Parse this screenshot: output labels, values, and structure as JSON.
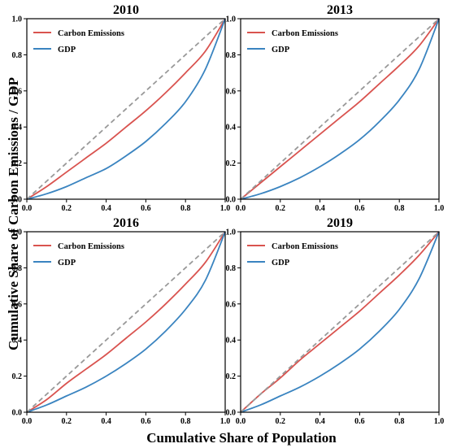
{
  "figure": {
    "xlabel": "Cumulative Share of Population",
    "ylabel": "Cumulative Share of Carbon Emissions / GDP",
    "colors": {
      "emissions": "#d9534f",
      "gdp": "#3a84c0",
      "equality": "#999999"
    }
  },
  "chart_data": [
    {
      "type": "line",
      "title": "2010",
      "xlim": [
        0,
        1
      ],
      "ylim": [
        0,
        1
      ],
      "xticks": [
        "0.0",
        "0.2",
        "0.4",
        "0.6",
        "0.8",
        "1.0"
      ],
      "yticks": [
        "0.0",
        "0.2",
        "0.4",
        "0.6",
        "0.8",
        "1.0"
      ],
      "legend_position": "top-left",
      "series": [
        {
          "name": "Carbon Emissions",
          "x": [
            0,
            0.1,
            0.2,
            0.3,
            0.4,
            0.5,
            0.6,
            0.7,
            0.8,
            0.9,
            1.0
          ],
          "values": [
            0,
            0.07,
            0.15,
            0.23,
            0.31,
            0.4,
            0.49,
            0.59,
            0.7,
            0.82,
            1.0
          ]
        },
        {
          "name": "GDP",
          "x": [
            0,
            0.1,
            0.2,
            0.3,
            0.4,
            0.5,
            0.6,
            0.7,
            0.8,
            0.9,
            1.0
          ],
          "values": [
            0,
            0.03,
            0.07,
            0.12,
            0.17,
            0.24,
            0.32,
            0.42,
            0.54,
            0.72,
            1.0
          ]
        },
        {
          "x": [
            0,
            1
          ],
          "values": [
            0,
            1
          ],
          "style": "dashed"
        }
      ]
    },
    {
      "type": "line",
      "title": "2013",
      "xlim": [
        0,
        1
      ],
      "ylim": [
        0,
        1
      ],
      "xticks": [
        "0.0",
        "0.2",
        "0.4",
        "0.6",
        "0.8",
        "1.0"
      ],
      "yticks": [
        "0.0",
        "0.2",
        "0.4",
        "0.6",
        "0.8",
        "1.0"
      ],
      "legend_position": "top-left",
      "series": [
        {
          "name": "Carbon Emissions",
          "x": [
            0,
            0.1,
            0.2,
            0.3,
            0.4,
            0.5,
            0.6,
            0.7,
            0.8,
            0.9,
            1.0
          ],
          "values": [
            0,
            0.09,
            0.18,
            0.27,
            0.36,
            0.45,
            0.54,
            0.64,
            0.74,
            0.85,
            1.0
          ]
        },
        {
          "name": "GDP",
          "x": [
            0,
            0.1,
            0.2,
            0.3,
            0.4,
            0.5,
            0.6,
            0.7,
            0.8,
            0.9,
            1.0
          ],
          "values": [
            0,
            0.03,
            0.07,
            0.12,
            0.18,
            0.25,
            0.33,
            0.43,
            0.55,
            0.72,
            1.0
          ]
        },
        {
          "x": [
            0,
            1
          ],
          "values": [
            0,
            1
          ],
          "style": "dashed"
        }
      ]
    },
    {
      "type": "line",
      "title": "2016",
      "xlim": [
        0,
        1
      ],
      "ylim": [
        0,
        1
      ],
      "xticks": [
        "0.0",
        "0.2",
        "0.4",
        "0.6",
        "0.8",
        "1.0"
      ],
      "yticks": [
        "0.0",
        "0.2",
        "0.4",
        "0.6",
        "0.8",
        "1.0"
      ],
      "legend_position": "top-left",
      "series": [
        {
          "name": "Carbon Emissions",
          "x": [
            0,
            0.1,
            0.2,
            0.3,
            0.4,
            0.5,
            0.6,
            0.7,
            0.8,
            0.9,
            1.0
          ],
          "values": [
            0,
            0.07,
            0.16,
            0.24,
            0.32,
            0.41,
            0.5,
            0.6,
            0.71,
            0.83,
            1.0
          ]
        },
        {
          "name": "GDP",
          "x": [
            0,
            0.1,
            0.2,
            0.3,
            0.4,
            0.5,
            0.6,
            0.7,
            0.8,
            0.9,
            1.0
          ],
          "values": [
            0,
            0.04,
            0.09,
            0.14,
            0.2,
            0.27,
            0.35,
            0.45,
            0.57,
            0.73,
            1.0
          ]
        },
        {
          "x": [
            0,
            1
          ],
          "values": [
            0,
            1
          ],
          "style": "dashed"
        }
      ]
    },
    {
      "type": "line",
      "title": "2019",
      "xlim": [
        0,
        1
      ],
      "ylim": [
        0,
        1
      ],
      "xticks": [
        "0.0",
        "0.2",
        "0.4",
        "0.6",
        "0.8",
        "1.0"
      ],
      "yticks": [
        "0.0",
        "0.2",
        "0.4",
        "0.6",
        "0.8",
        "1.0"
      ],
      "legend_position": "top-left",
      "series": [
        {
          "name": "Carbon Emissions",
          "x": [
            0,
            0.1,
            0.2,
            0.3,
            0.4,
            0.5,
            0.6,
            0.7,
            0.8,
            0.9,
            1.0
          ],
          "values": [
            0,
            0.1,
            0.19,
            0.29,
            0.38,
            0.47,
            0.56,
            0.66,
            0.76,
            0.87,
            1.0
          ]
        },
        {
          "name": "GDP",
          "x": [
            0,
            0.1,
            0.2,
            0.3,
            0.4,
            0.5,
            0.6,
            0.7,
            0.8,
            0.9,
            1.0
          ],
          "values": [
            0,
            0.04,
            0.09,
            0.14,
            0.2,
            0.27,
            0.35,
            0.45,
            0.57,
            0.74,
            1.0
          ]
        },
        {
          "x": [
            0,
            1
          ],
          "values": [
            0,
            1
          ],
          "style": "dashed"
        }
      ]
    }
  ]
}
